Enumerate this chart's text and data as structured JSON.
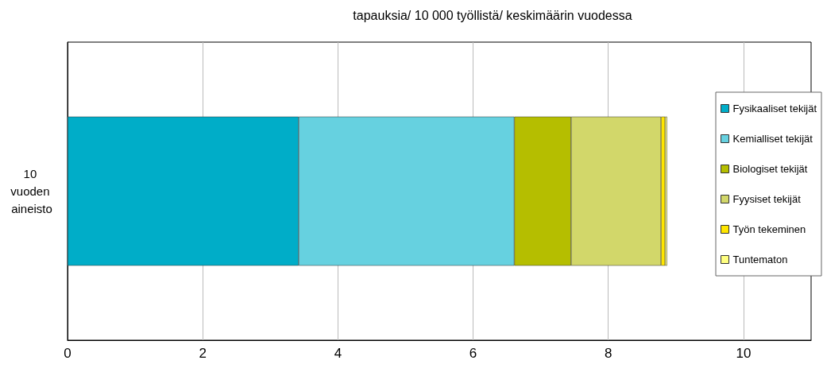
{
  "chart_data": {
    "type": "bar",
    "orientation": "horizontal",
    "stacked": true,
    "title": "tapauksia/ 10 000 työllistä/ keskimäärin vuodessa",
    "categories": [
      "10 vuoden aineisto"
    ],
    "series": [
      {
        "name": "Fysikaaliset tekijät",
        "color": "#00adc8",
        "values": [
          3.42
        ]
      },
      {
        "name": "Kemialliset tekijät",
        "color": "#66d1e0",
        "values": [
          3.19
        ]
      },
      {
        "name": "Biologiset tekijät",
        "color": "#b5be00",
        "values": [
          0.84
        ]
      },
      {
        "name": "Fyysiset tekijät",
        "color": "#d2d76a",
        "values": [
          1.33
        ]
      },
      {
        "name": "Työn tekeminen",
        "color": "#ffe600",
        "values": [
          0.06
        ]
      },
      {
        "name": "Tuntematon",
        "color": "#ffff80",
        "values": [
          0.03
        ]
      }
    ],
    "xlim": [
      0,
      11
    ],
    "xticks": [
      0,
      2,
      4,
      6,
      8,
      10
    ],
    "grid": "x",
    "legend": "right"
  }
}
